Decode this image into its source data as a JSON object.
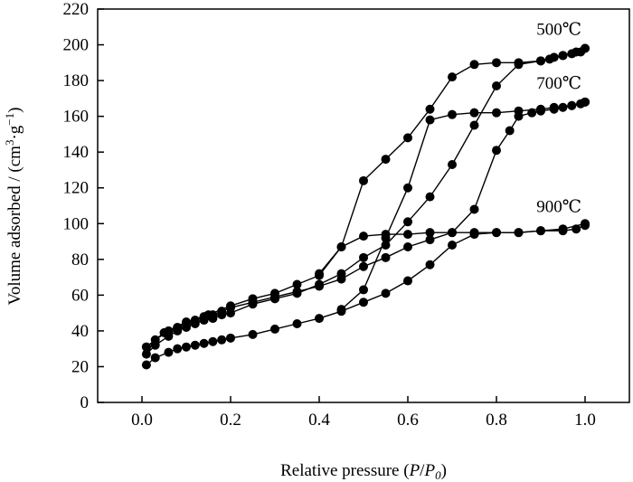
{
  "chart_data": {
    "type": "line",
    "title": "",
    "xlabel_parts": [
      "Relative pressure (",
      "P",
      "/",
      "P",
      "0",
      ")"
    ],
    "ylabel_parts": [
      "Volume adsorbed / (cm",
      "3",
      "·g",
      "−1",
      ")"
    ],
    "xlim": [
      -0.1,
      1.1
    ],
    "ylim": [
      0,
      220
    ],
    "xticks": [
      0.0,
      0.2,
      0.4,
      0.6,
      0.8,
      1.0
    ],
    "xtick_labels": [
      "0.0",
      "0.2",
      "0.4",
      "0.6",
      "0.8",
      "1.0"
    ],
    "yticks": [
      0,
      20,
      40,
      60,
      80,
      100,
      120,
      140,
      160,
      180,
      200,
      220
    ],
    "ytick_labels": [
      "0",
      "20",
      "40",
      "60",
      "80",
      "100",
      "120",
      "140",
      "160",
      "180",
      "200",
      "220"
    ],
    "grid": false,
    "legend": "none",
    "series": [
      {
        "name": "500℃",
        "color": "#000000",
        "adsorption": {
          "x": [
            0.01,
            0.03,
            0.06,
            0.08,
            0.1,
            0.12,
            0.14,
            0.16,
            0.18,
            0.2,
            0.25,
            0.3,
            0.35,
            0.4,
            0.45,
            0.5,
            0.55,
            0.6,
            0.65,
            0.7,
            0.75,
            0.8,
            0.85,
            0.9,
            0.93,
            0.95,
            0.97,
            0.99,
            1.0
          ],
          "y": [
            27,
            32,
            37,
            40,
            42,
            44,
            46,
            47,
            49,
            50,
            55,
            58,
            61,
            66,
            72,
            81,
            88,
            101,
            115,
            133,
            155,
            177,
            189,
            191,
            193,
            194,
            195,
            196,
            198
          ]
        },
        "desorption": {
          "x": [
            1.0,
            0.98,
            0.95,
            0.92,
            0.9,
            0.85,
            0.8,
            0.75,
            0.7,
            0.65,
            0.6,
            0.55,
            0.5,
            0.45,
            0.4
          ],
          "y": [
            198,
            196,
            194,
            192,
            191,
            190,
            190,
            189,
            182,
            164,
            148,
            136,
            124,
            87,
            72
          ]
        }
      },
      {
        "name": "700℃",
        "color": "#000000",
        "adsorption": {
          "x": [
            0.01,
            0.03,
            0.06,
            0.08,
            0.1,
            0.12,
            0.14,
            0.16,
            0.18,
            0.2,
            0.25,
            0.3,
            0.35,
            0.4,
            0.45,
            0.5,
            0.55,
            0.6,
            0.65,
            0.7,
            0.75,
            0.8,
            0.83,
            0.85,
            0.88,
            0.9,
            0.93,
            0.95,
            0.97,
            0.99,
            1.0
          ],
          "y": [
            31,
            35,
            40,
            42,
            44,
            46,
            48,
            49,
            51,
            53,
            56,
            59,
            62,
            65,
            69,
            76,
            81,
            87,
            91,
            95,
            108,
            141,
            152,
            160,
            162,
            163,
            164,
            165,
            166,
            167,
            168
          ]
        },
        "desorption": {
          "x": [
            1.0,
            0.97,
            0.93,
            0.9,
            0.85,
            0.8,
            0.75,
            0.7,
            0.65,
            0.6,
            0.55,
            0.5,
            0.45
          ],
          "y": [
            168,
            166,
            165,
            164,
            163,
            162,
            162,
            161,
            158,
            120,
            92,
            63,
            52
          ]
        }
      },
      {
        "name": "900℃",
        "color": "#000000",
        "adsorption": {
          "x": [
            0.01,
            0.03,
            0.06,
            0.08,
            0.1,
            0.12,
            0.14,
            0.16,
            0.18,
            0.2,
            0.25,
            0.3,
            0.35,
            0.4,
            0.45,
            0.5,
            0.55,
            0.6,
            0.65,
            0.7,
            0.75,
            0.8,
            0.85,
            0.9,
            0.95,
            0.98,
            1.0
          ],
          "y": [
            21,
            25,
            28,
            30,
            31,
            32,
            33,
            34,
            35,
            36,
            38,
            41,
            44,
            47,
            51,
            56,
            61,
            68,
            77,
            88,
            94,
            95,
            95,
            96,
            96,
            97,
            99
          ]
        },
        "desorption": {
          "x": [
            1.0,
            0.95,
            0.9,
            0.85,
            0.8,
            0.75,
            0.7,
            0.65,
            0.6,
            0.55,
            0.5,
            0.45,
            0.4,
            0.35,
            0.3,
            0.25,
            0.2,
            0.15,
            0.1,
            0.05,
            0.01
          ],
          "y": [
            100,
            97,
            96,
            95,
            95,
            95,
            95,
            95,
            94,
            94,
            93,
            87,
            71,
            66,
            61,
            58,
            54,
            49,
            45,
            39,
            31
          ]
        }
      }
    ]
  }
}
